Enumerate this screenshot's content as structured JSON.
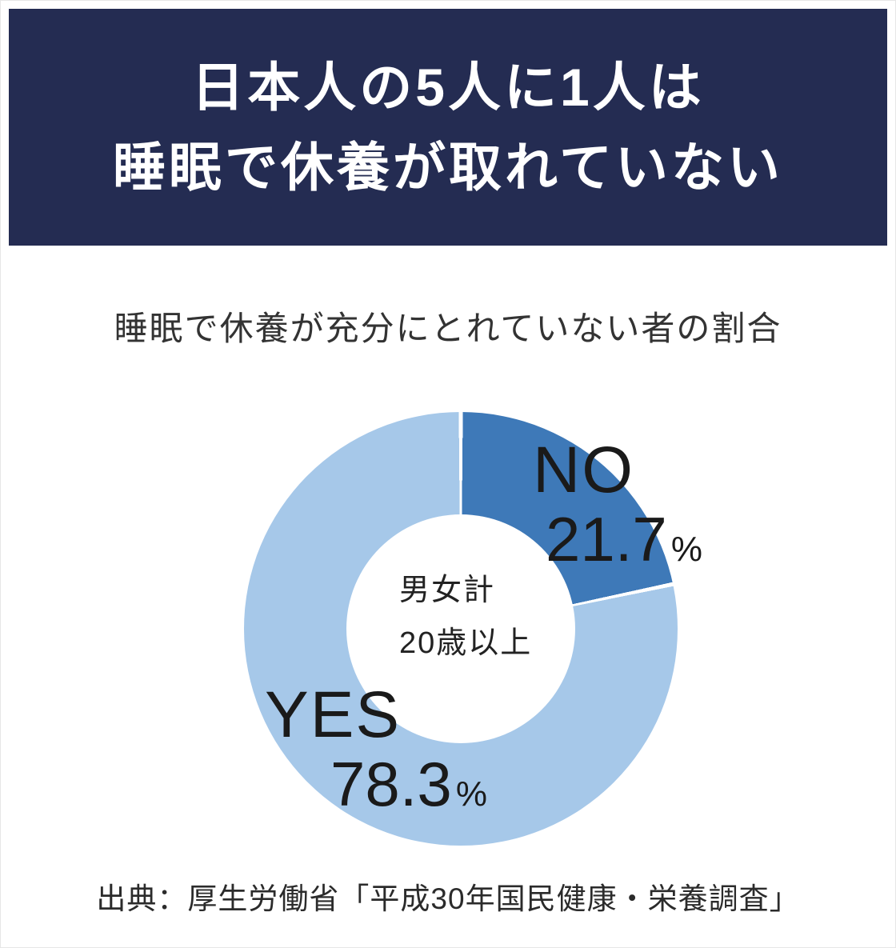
{
  "header": {
    "title_line1": "日本人の5人に1人は",
    "title_line2": "睡眠で休養が取れていない",
    "bg_color": "#242c52",
    "text_color": "#ffffff"
  },
  "chart_data": {
    "type": "pie",
    "donut": true,
    "title": "睡眠で休養が充分にとれていない者の割合",
    "categories": [
      "NO",
      "YES"
    ],
    "values": [
      21.7,
      78.3
    ],
    "unit": "%",
    "colors": [
      "#3e79b8",
      "#a6c8e9"
    ],
    "separator_color": "#ffffff",
    "start_angle": "12-oclock",
    "direction": "clockwise",
    "center_labels": [
      "男女計",
      "20歳以上"
    ],
    "legend_position": "on-chart"
  },
  "source": {
    "text": "出典：厚生労働省「平成30年国民健康・栄養調査」"
  }
}
